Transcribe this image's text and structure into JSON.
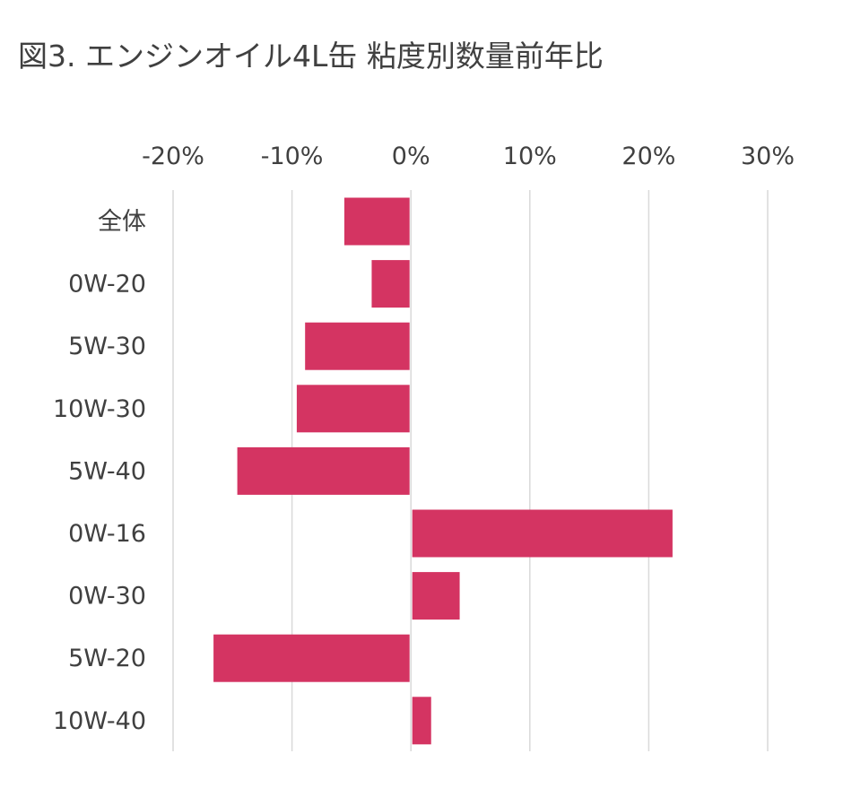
{
  "chart_data": {
    "type": "bar",
    "orientation": "horizontal",
    "title": "図3. エンジンオイル4L缶 粘度別数量前年比",
    "xlabel": "",
    "ylabel": "",
    "x_axis_position": "top",
    "xlim": [
      -0.2,
      0.3
    ],
    "x_ticks": [
      -0.2,
      -0.1,
      0,
      0.1,
      0.2,
      0.3
    ],
    "x_tick_labels": [
      "-20%",
      "-10%",
      "0%",
      "10%",
      "20%",
      "30%"
    ],
    "grid": true,
    "legend": "none",
    "bar_color": "#D43462",
    "gridline_color": "#D9D9D9",
    "categories": [
      "全体",
      "0W-20",
      "5W-30",
      "10W-30",
      "5W-40",
      "0W-16",
      "0W-30",
      "5W-20",
      "10W-40"
    ],
    "values": [
      -0.056,
      -0.033,
      -0.089,
      -0.096,
      -0.146,
      0.22,
      0.041,
      -0.166,
      0.017
    ]
  }
}
